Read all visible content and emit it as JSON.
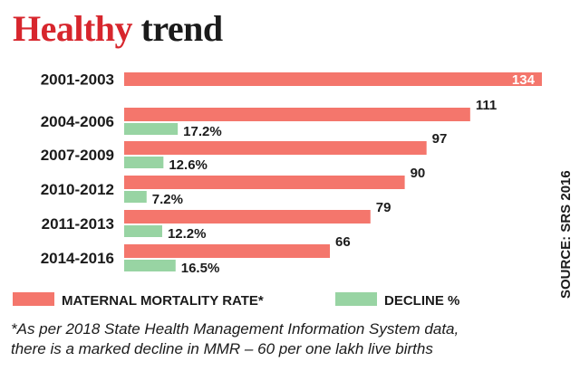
{
  "title": {
    "part1": "Healthy",
    "part2": "trend"
  },
  "source": "SOURCE: SRS 2016",
  "footnote": {
    "line1": "*As per 2018 State Health Management Information System data,",
    "line2": "there is a marked decline in MMR – 60 per one lakh live births"
  },
  "colors": {
    "mmr": "#f4766c",
    "decline": "#98d4a3",
    "title_accent": "#d7262d",
    "text": "#1b1b1b"
  },
  "chart_data": {
    "type": "bar",
    "orientation": "horizontal",
    "categories": [
      "2001-2003",
      "2004-2006",
      "2007-2009",
      "2010-2012",
      "2011-2013",
      "2014-2016"
    ],
    "series": [
      {
        "name": "MATERNAL MORTALITY RATE*",
        "values": [
          134,
          111,
          97,
          90,
          79,
          66
        ]
      },
      {
        "name": "DECLINE %",
        "values": [
          null,
          17.2,
          12.6,
          7.2,
          12.2,
          16.5
        ]
      }
    ],
    "data_labels": {
      "mmr": [
        "134",
        "111",
        "97",
        "90",
        "79",
        "66"
      ],
      "decline": [
        "",
        "17.2%",
        "12.6%",
        "7.2%",
        "12.2%",
        "16.5%"
      ]
    },
    "legend_position": "bottom"
  }
}
